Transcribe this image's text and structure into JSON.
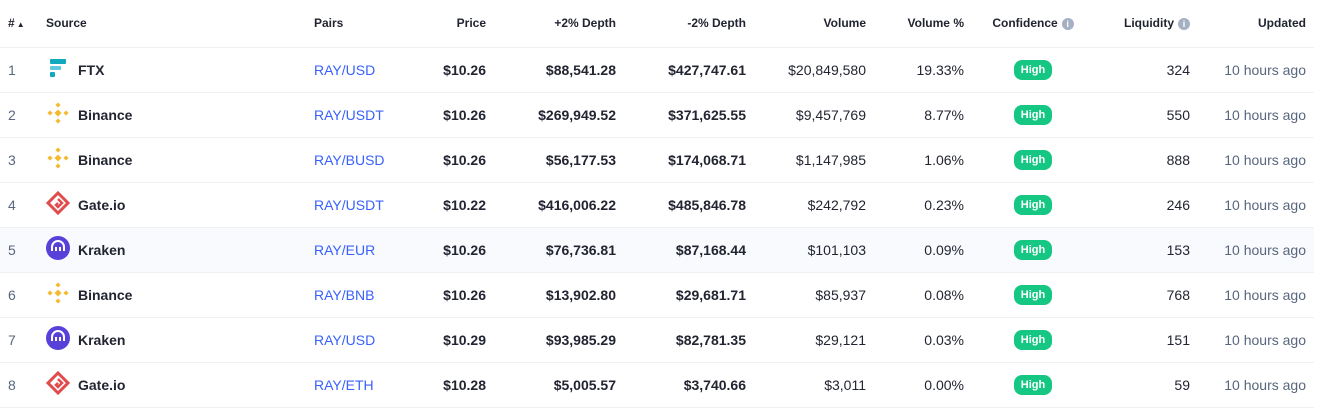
{
  "header": {
    "rank": "#",
    "sort_indicator": "▲",
    "source": "Source",
    "pairs": "Pairs",
    "price": "Price",
    "depth_plus": "+2% Depth",
    "depth_minus": "-2% Depth",
    "volume": "Volume",
    "volume_pct": "Volume %",
    "confidence": "Confidence",
    "liquidity": "Liquidity",
    "updated": "Updated",
    "info_glyph": "i"
  },
  "colors": {
    "badge_high": "#16c784",
    "pair_link": "#3861fb",
    "ftx": "#11a9bc",
    "binance": "#f3ba2f",
    "gate": "#e04b4b",
    "kraken": "#5741d9"
  },
  "rows": [
    {
      "rank": "1",
      "source": "FTX",
      "logo": "ftx-icon",
      "pair": "RAY/USD",
      "price": "$10.26",
      "depth_plus": "$88,541.28",
      "depth_minus": "$427,747.61",
      "volume": "$20,849,580",
      "volume_pct": "19.33%",
      "confidence": "High",
      "liquidity": "324",
      "updated": "10 hours ago"
    },
    {
      "rank": "2",
      "source": "Binance",
      "logo": "binance-icon",
      "pair": "RAY/USDT",
      "price": "$10.26",
      "depth_plus": "$269,949.52",
      "depth_minus": "$371,625.55",
      "volume": "$9,457,769",
      "volume_pct": "8.77%",
      "confidence": "High",
      "liquidity": "550",
      "updated": "10 hours ago"
    },
    {
      "rank": "3",
      "source": "Binance",
      "logo": "binance-icon",
      "pair": "RAY/BUSD",
      "price": "$10.26",
      "depth_plus": "$56,177.53",
      "depth_minus": "$174,068.71",
      "volume": "$1,147,985",
      "volume_pct": "1.06%",
      "confidence": "High",
      "liquidity": "888",
      "updated": "10 hours ago"
    },
    {
      "rank": "4",
      "source": "Gate.io",
      "logo": "gate-io-icon",
      "pair": "RAY/USDT",
      "price": "$10.22",
      "depth_plus": "$416,006.22",
      "depth_minus": "$485,846.78",
      "volume": "$242,792",
      "volume_pct": "0.23%",
      "confidence": "High",
      "liquidity": "246",
      "updated": "10 hours ago"
    },
    {
      "rank": "5",
      "source": "Kraken",
      "logo": "kraken-icon",
      "pair": "RAY/EUR",
      "price": "$10.26",
      "depth_plus": "$76,736.81",
      "depth_minus": "$87,168.44",
      "volume": "$101,103",
      "volume_pct": "0.09%",
      "confidence": "High",
      "liquidity": "153",
      "updated": "10 hours ago"
    },
    {
      "rank": "6",
      "source": "Binance",
      "logo": "binance-icon",
      "pair": "RAY/BNB",
      "price": "$10.26",
      "depth_plus": "$13,902.80",
      "depth_minus": "$29,681.71",
      "volume": "$85,937",
      "volume_pct": "0.08%",
      "confidence": "High",
      "liquidity": "768",
      "updated": "10 hours ago"
    },
    {
      "rank": "7",
      "source": "Kraken",
      "logo": "kraken-icon",
      "pair": "RAY/USD",
      "price": "$10.29",
      "depth_plus": "$93,985.29",
      "depth_minus": "$82,781.35",
      "volume": "$29,121",
      "volume_pct": "0.03%",
      "confidence": "High",
      "liquidity": "151",
      "updated": "10 hours ago"
    },
    {
      "rank": "8",
      "source": "Gate.io",
      "logo": "gate-io-icon",
      "pair": "RAY/ETH",
      "price": "$10.28",
      "depth_plus": "$5,005.57",
      "depth_minus": "$3,740.66",
      "volume": "$3,011",
      "volume_pct": "0.00%",
      "confidence": "High",
      "liquidity": "59",
      "updated": "10 hours ago"
    }
  ]
}
